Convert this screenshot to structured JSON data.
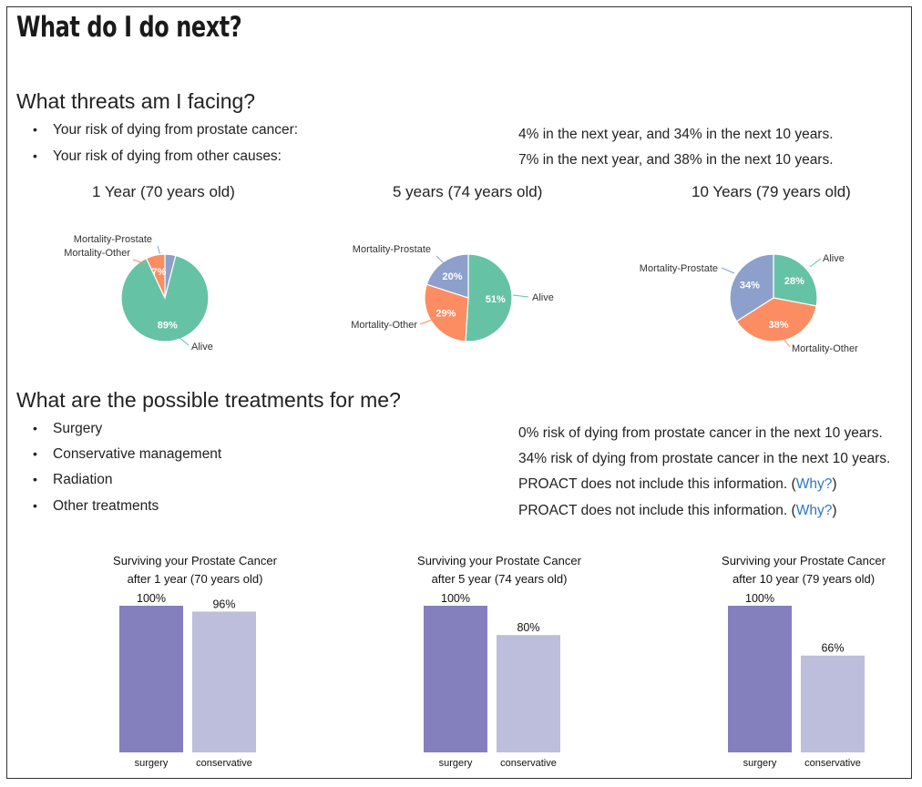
{
  "page": {
    "title": "What do I do next?"
  },
  "threats": {
    "heading": "What threats am I facing?",
    "items": [
      {
        "label": "Your risk of dying from prostate cancer:",
        "value": "4% in the next year, and 34% in the next 10 years."
      },
      {
        "label": "Your risk of dying from other causes:",
        "value": "7% in the next year, and 38% in the next 10 years."
      }
    ]
  },
  "treatments": {
    "heading": "What are the possible treatments for me?",
    "items": [
      {
        "label": "Surgery",
        "value": "0% risk of dying from prostate cancer in the next 10 years."
      },
      {
        "label": "Conservative management",
        "value": "34% risk of dying from prostate cancer in the next 10 years."
      },
      {
        "label": "Radiation",
        "value": "PROACT does not include this information. (",
        "link": "Why?",
        "suffix": ")"
      },
      {
        "label": "Other treatments",
        "value": "PROACT does not include this information. (",
        "link": "Why?",
        "suffix": ")"
      }
    ]
  },
  "colors": {
    "alive": "#66c2a5",
    "mortality_other": "#fc8d62",
    "mortality_prostate": "#8da0cb",
    "surgery_bar": "#8480bd",
    "conservative_bar": "#bdbddc",
    "link": "#2a78c6"
  },
  "chart_data": [
    {
      "type": "pie",
      "title": "1 Year (70 years old)",
      "slices": [
        {
          "label": "Alive",
          "value": 89,
          "display": "89%"
        },
        {
          "label": "Mortality-Other",
          "value": 7,
          "display": "7%"
        },
        {
          "label": "Mortality-Prostate",
          "value": 4,
          "display": ""
        }
      ]
    },
    {
      "type": "pie",
      "title": "5 years (74 years old)",
      "slices": [
        {
          "label": "Alive",
          "value": 51,
          "display": "51%"
        },
        {
          "label": "Mortality-Other",
          "value": 29,
          "display": "29%"
        },
        {
          "label": "Mortality-Prostate",
          "value": 20,
          "display": "20%"
        }
      ]
    },
    {
      "type": "pie",
      "title": "10 Years (79 years old)",
      "slices": [
        {
          "label": "Alive",
          "value": 28,
          "display": "28%"
        },
        {
          "label": "Mortality-Other",
          "value": 38,
          "display": "38%"
        },
        {
          "label": "Mortality-Prostate",
          "value": 34,
          "display": "34%"
        }
      ]
    },
    {
      "type": "bar",
      "title": [
        "Surviving your Prostate Cancer",
        "after 1 year (70 years old)"
      ],
      "categories": [
        "surgery",
        "conservative"
      ],
      "values": [
        100,
        96
      ],
      "value_labels": [
        "100%",
        "96%"
      ],
      "ylim": [
        0,
        100
      ]
    },
    {
      "type": "bar",
      "title": [
        "Surviving your Prostate Cancer",
        "after 5 year (74 years old)"
      ],
      "categories": [
        "surgery",
        "conservative"
      ],
      "values": [
        100,
        80
      ],
      "value_labels": [
        "100%",
        "80%"
      ],
      "ylim": [
        0,
        100
      ]
    },
    {
      "type": "bar",
      "title": [
        "Surviving your Prostate Cancer",
        "after 10 year (79 years old)"
      ],
      "categories": [
        "surgery",
        "conservative"
      ],
      "values": [
        100,
        66
      ],
      "value_labels": [
        "100%",
        "66%"
      ],
      "ylim": [
        0,
        100
      ]
    }
  ]
}
